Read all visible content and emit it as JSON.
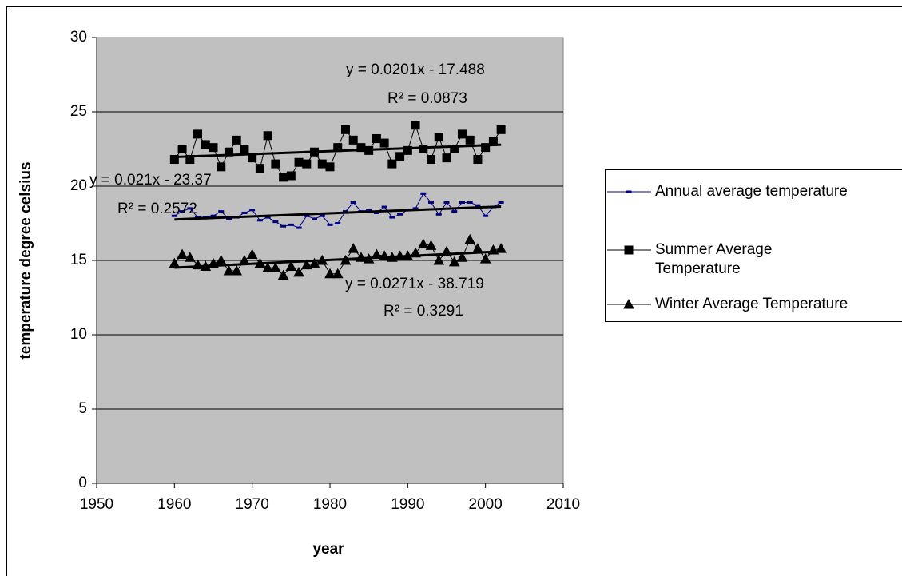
{
  "chart_data": {
    "type": "scatter",
    "xlabel": "year",
    "ylabel": "temperature degree celsius",
    "xlim": [
      1950,
      2010
    ],
    "xticks": [
      1950,
      1960,
      1970,
      1980,
      1990,
      2000,
      2010
    ],
    "ylim": [
      0,
      30
    ],
    "yticks": [
      0,
      5,
      10,
      15,
      20,
      25,
      30
    ],
    "grid": true,
    "legend": "right",
    "x": [
      1960,
      1961,
      1962,
      1963,
      1964,
      1965,
      1966,
      1967,
      1968,
      1969,
      1970,
      1971,
      1972,
      1973,
      1974,
      1975,
      1976,
      1977,
      1978,
      1979,
      1980,
      1981,
      1982,
      1983,
      1984,
      1985,
      1986,
      1987,
      1988,
      1989,
      1990,
      1991,
      1992,
      1993,
      1994,
      1995,
      1996,
      1997,
      1998,
      1999,
      2000,
      2001,
      2002
    ],
    "series": [
      {
        "name": "Annual average temperature",
        "color": "#000080",
        "marker": "dash",
        "values": [
          18.0,
          18.3,
          18.5,
          17.9,
          17.9,
          18.0,
          18.3,
          17.8,
          17.9,
          18.2,
          18.4,
          17.7,
          17.9,
          17.6,
          17.3,
          17.4,
          17.2,
          18.0,
          17.8,
          18.0,
          17.4,
          17.5,
          18.3,
          18.9,
          18.3,
          18.4,
          18.2,
          18.6,
          17.9,
          18.1,
          18.4,
          18.5,
          19.5,
          18.9,
          18.1,
          18.9,
          18.3,
          18.9,
          18.9,
          18.7,
          18.0,
          18.6,
          18.9
        ],
        "equation": "y = 0.021x - 23.37",
        "r2": "R² = 0.2572"
      },
      {
        "name": "Summer Average Temperature",
        "color": "#000000",
        "marker": "square",
        "values": [
          21.8,
          22.5,
          21.8,
          23.5,
          22.8,
          22.6,
          21.3,
          22.3,
          23.1,
          22.5,
          21.9,
          21.2,
          23.4,
          21.5,
          20.6,
          20.7,
          21.6,
          21.5,
          22.3,
          21.5,
          21.3,
          22.6,
          23.8,
          23.1,
          22.6,
          22.4,
          23.2,
          22.9,
          21.5,
          22.0,
          22.4,
          24.1,
          22.5,
          21.8,
          23.3,
          21.9,
          22.5,
          23.5,
          23.1,
          21.8,
          22.6,
          23.0,
          23.8
        ],
        "equation": "y = 0.0201x - 17.488",
        "r2": "R² = 0.0873"
      },
      {
        "name": "Winter Average Temperature",
        "color": "#000000",
        "marker": "triangle",
        "values": [
          14.8,
          15.4,
          15.2,
          14.7,
          14.6,
          14.8,
          15.0,
          14.3,
          14.3,
          15.0,
          15.4,
          14.8,
          14.5,
          14.5,
          14.0,
          14.6,
          14.2,
          14.7,
          14.8,
          15.0,
          14.1,
          14.1,
          15.0,
          15.8,
          15.2,
          15.1,
          15.4,
          15.3,
          15.2,
          15.3,
          15.3,
          15.5,
          16.1,
          16.0,
          15.0,
          15.6,
          14.9,
          15.2,
          16.4,
          15.8,
          15.1,
          15.7,
          15.8
        ],
        "equation": "y = 0.0271x - 38.719",
        "r2": "R² = 0.3291"
      }
    ]
  }
}
